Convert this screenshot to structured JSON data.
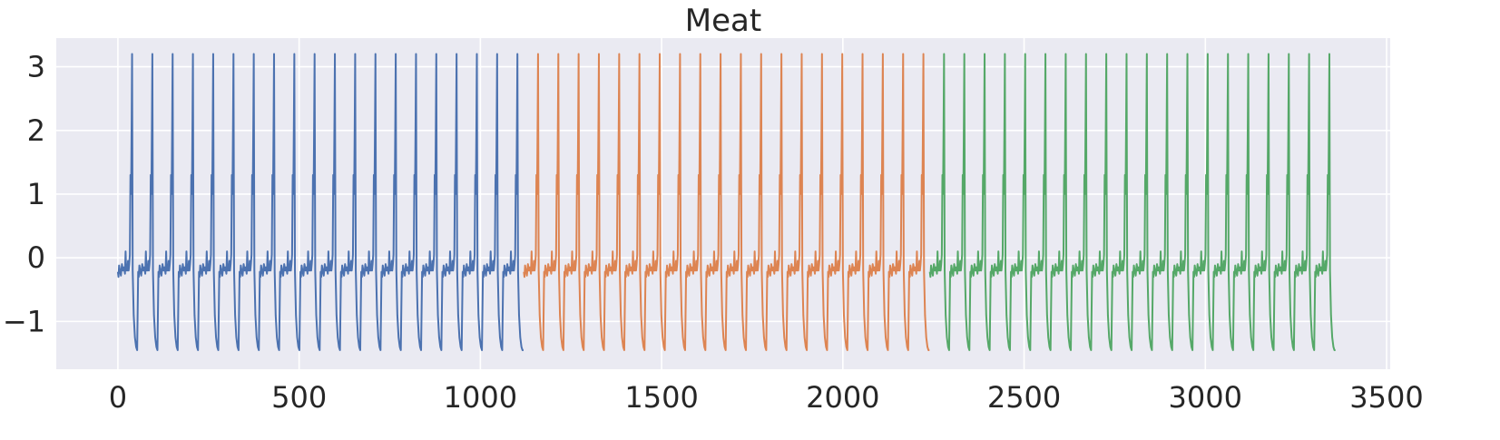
{
  "chart_data": {
    "type": "line",
    "title": "Meat",
    "xlabel": "",
    "ylabel": "",
    "xlim": [
      -170,
      3510
    ],
    "ylim": [
      -1.75,
      3.45
    ],
    "xticks": [
      0,
      500,
      1000,
      1500,
      2000,
      2500,
      3000,
      3500
    ],
    "xtick_labels": [
      "0",
      "500",
      "1000",
      "1500",
      "2000",
      "2500",
      "3000",
      "3500"
    ],
    "yticks": [
      -1,
      0,
      1,
      2,
      3
    ],
    "ytick_labels": [
      "−1",
      "0",
      "1",
      "2",
      "3"
    ],
    "grid": true,
    "legend": "none",
    "background": "#eaeaf2",
    "series_length_per_segment": 1120,
    "cycles_per_segment": 20,
    "cycle_template": {
      "phase": [
        0,
        0.03,
        0.06,
        0.1,
        0.15,
        0.2,
        0.25,
        0.3,
        0.35,
        0.38,
        0.41,
        0.44,
        0.47,
        0.5,
        0.53,
        0.56,
        0.59,
        0.62,
        0.64,
        0.66,
        0.68,
        0.7,
        0.73,
        0.78,
        0.84,
        0.9,
        0.95,
        1.0
      ],
      "value": [
        -0.22,
        -0.3,
        -0.12,
        -0.2,
        -0.28,
        -0.1,
        -0.2,
        -0.15,
        -0.25,
        0.1,
        -0.2,
        -0.15,
        -0.2,
        -0.05,
        -0.2,
        -0.1,
        0.05,
        1.3,
        1.0,
        1.35,
        2.2,
        3.2,
        -0.2,
        -0.9,
        -1.25,
        -1.4,
        -1.45,
        -0.22
      ]
    },
    "series": [
      {
        "color": "#4c72b0",
        "x_start": 0,
        "x_end": 1119
      },
      {
        "color": "#dd8452",
        "x_start": 1120,
        "x_end": 2239
      },
      {
        "color": "#55a868",
        "x_start": 2240,
        "x_end": 3359
      }
    ]
  }
}
